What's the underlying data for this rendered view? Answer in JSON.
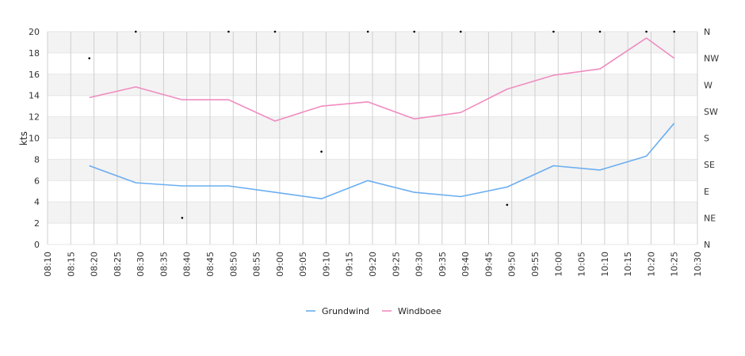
{
  "chart_data": {
    "type": "line",
    "ylabel": "kts",
    "ylim": [
      0,
      20
    ],
    "y_ticks": [
      0,
      2,
      4,
      6,
      8,
      10,
      12,
      14,
      16,
      18,
      20
    ],
    "x_ticks": [
      "08:10",
      "08:15",
      "08:20",
      "08:25",
      "08:30",
      "08:35",
      "08:40",
      "08:45",
      "08:50",
      "08:55",
      "09:00",
      "09:05",
      "09:10",
      "09:15",
      "09:20",
      "09:25",
      "09:30",
      "09:35",
      "09:40",
      "09:45",
      "09:50",
      "09:55",
      "10:00",
      "10:05",
      "10:10",
      "10:15",
      "10:20",
      "10:25",
      "10:30"
    ],
    "x_range": [
      "08:10",
      "10:30"
    ],
    "right_axis": {
      "labels": [
        "N",
        "NE",
        "E",
        "SE",
        "S",
        "SW",
        "W",
        "NW",
        "N"
      ],
      "range_degrees": [
        0,
        360
      ]
    },
    "x": [
      "08:19",
      "08:29",
      "08:39",
      "08:49",
      "08:59",
      "09:09",
      "09:19",
      "09:29",
      "09:39",
      "09:49",
      "09:59",
      "10:09",
      "10:19",
      "10:25"
    ],
    "series": [
      {
        "name": "Grundwind",
        "color": "#6aaef0",
        "values": [
          7.4,
          5.8,
          5.5,
          5.5,
          4.9,
          4.3,
          6.0,
          4.9,
          4.5,
          5.4,
          7.4,
          7.0,
          8.3,
          11.4
        ]
      },
      {
        "name": "Windboee",
        "color": "#f08cc0",
        "values": [
          13.8,
          14.8,
          13.6,
          13.6,
          11.6,
          13.0,
          13.4,
          11.8,
          12.4,
          14.6,
          15.9,
          16.5,
          19.4,
          17.5
        ]
      }
    ],
    "direction_points": {
      "color": "#000000",
      "x": [
        "08:19",
        "08:29",
        "08:39",
        "08:49",
        "08:59",
        "09:09",
        "09:19",
        "09:29",
        "09:39",
        "09:49",
        "09:59",
        "10:09",
        "10:19",
        "10:25"
      ],
      "degrees": [
        315,
        360,
        45,
        360,
        360,
        157,
        360,
        360,
        360,
        67,
        360,
        360,
        360,
        360
      ]
    },
    "grid": true,
    "legend_position": "bottom-center"
  }
}
